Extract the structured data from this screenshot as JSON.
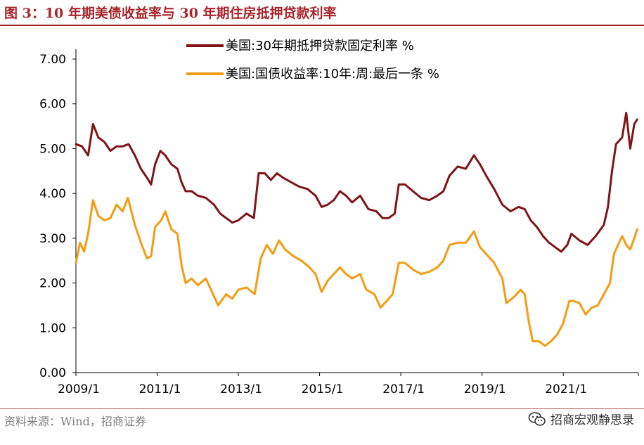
{
  "figure_title": "图 3：10 年期美债收益率与 30 年期住房抵押贷款利率",
  "source": "资料来源：Wind，招商证券",
  "watermark": {
    "text": "招商宏观静思录",
    "icon": "wechat-icon"
  },
  "colors": {
    "accent": "#a6252b",
    "mortgage": "#7f1416",
    "treasury": "#f39c12"
  },
  "chart_data": {
    "type": "line",
    "title": "",
    "xlabel": "",
    "ylabel": "",
    "ylim": [
      0,
      7
    ],
    "yticks": [
      "0.00",
      "1.00",
      "2.00",
      "3.00",
      "4.00",
      "5.00",
      "6.00",
      "7.00"
    ],
    "xlim": [
      2009.0,
      2022.85
    ],
    "xticks": [
      {
        "label": "2009/1",
        "value": 2009.0
      },
      {
        "label": "2011/1",
        "value": 2011.0
      },
      {
        "label": "2013/1",
        "value": 2013.0
      },
      {
        "label": "2015/1",
        "value": 2015.0
      },
      {
        "label": "2017/1",
        "value": 2017.0
      },
      {
        "label": "2019/1",
        "value": 2019.0
      },
      {
        "label": "2021/1",
        "value": 2021.0
      }
    ],
    "grid": false,
    "legend": "top-center",
    "series": [
      {
        "name": "美国:30年期抵押贷款固定利率 %",
        "color": "#7f1416",
        "points": [
          [
            2009.0,
            5.1
          ],
          [
            2009.15,
            5.05
          ],
          [
            2009.3,
            4.85
          ],
          [
            2009.42,
            5.55
          ],
          [
            2009.55,
            5.25
          ],
          [
            2009.7,
            5.15
          ],
          [
            2009.85,
            4.95
          ],
          [
            2010.0,
            5.05
          ],
          [
            2010.15,
            5.05
          ],
          [
            2010.3,
            5.1
          ],
          [
            2010.45,
            4.85
          ],
          [
            2010.6,
            4.55
          ],
          [
            2010.75,
            4.35
          ],
          [
            2010.85,
            4.2
          ],
          [
            2010.95,
            4.65
          ],
          [
            2011.08,
            4.95
          ],
          [
            2011.2,
            4.85
          ],
          [
            2011.35,
            4.65
          ],
          [
            2011.5,
            4.55
          ],
          [
            2011.6,
            4.25
          ],
          [
            2011.7,
            4.05
          ],
          [
            2011.85,
            4.05
          ],
          [
            2012.0,
            3.95
          ],
          [
            2012.2,
            3.9
          ],
          [
            2012.4,
            3.75
          ],
          [
            2012.55,
            3.55
          ],
          [
            2012.7,
            3.45
          ],
          [
            2012.85,
            3.35
          ],
          [
            2013.0,
            3.4
          ],
          [
            2013.2,
            3.55
          ],
          [
            2013.38,
            3.45
          ],
          [
            2013.5,
            4.45
          ],
          [
            2013.65,
            4.45
          ],
          [
            2013.8,
            4.3
          ],
          [
            2013.95,
            4.45
          ],
          [
            2014.1,
            4.35
          ],
          [
            2014.3,
            4.25
          ],
          [
            2014.5,
            4.15
          ],
          [
            2014.7,
            4.1
          ],
          [
            2014.9,
            3.95
          ],
          [
            2015.05,
            3.7
          ],
          [
            2015.2,
            3.75
          ],
          [
            2015.35,
            3.85
          ],
          [
            2015.5,
            4.05
          ],
          [
            2015.65,
            3.95
          ],
          [
            2015.8,
            3.8
          ],
          [
            2016.0,
            3.95
          ],
          [
            2016.2,
            3.65
          ],
          [
            2016.4,
            3.6
          ],
          [
            2016.55,
            3.45
          ],
          [
            2016.7,
            3.45
          ],
          [
            2016.85,
            3.55
          ],
          [
            2016.95,
            4.2
          ],
          [
            2017.1,
            4.2
          ],
          [
            2017.3,
            4.05
          ],
          [
            2017.5,
            3.9
          ],
          [
            2017.7,
            3.85
          ],
          [
            2017.9,
            3.95
          ],
          [
            2018.05,
            4.05
          ],
          [
            2018.2,
            4.4
          ],
          [
            2018.4,
            4.6
          ],
          [
            2018.6,
            4.55
          ],
          [
            2018.8,
            4.85
          ],
          [
            2018.95,
            4.65
          ],
          [
            2019.1,
            4.4
          ],
          [
            2019.3,
            4.1
          ],
          [
            2019.5,
            3.75
          ],
          [
            2019.7,
            3.6
          ],
          [
            2019.9,
            3.7
          ],
          [
            2020.05,
            3.65
          ],
          [
            2020.2,
            3.4
          ],
          [
            2020.35,
            3.25
          ],
          [
            2020.5,
            3.05
          ],
          [
            2020.65,
            2.9
          ],
          [
            2020.8,
            2.8
          ],
          [
            2020.95,
            2.7
          ],
          [
            2021.1,
            2.85
          ],
          [
            2021.2,
            3.1
          ],
          [
            2021.4,
            2.95
          ],
          [
            2021.6,
            2.85
          ],
          [
            2021.8,
            3.05
          ],
          [
            2022.0,
            3.3
          ],
          [
            2022.1,
            3.7
          ],
          [
            2022.2,
            4.5
          ],
          [
            2022.3,
            5.1
          ],
          [
            2022.45,
            5.25
          ],
          [
            2022.55,
            5.8
          ],
          [
            2022.65,
            5.0
          ],
          [
            2022.75,
            5.55
          ],
          [
            2022.82,
            5.65
          ]
        ]
      },
      {
        "name": "美国:国债收益率:10年:周:最后一条 %",
        "color": "#f39c12",
        "points": [
          [
            2009.0,
            2.45
          ],
          [
            2009.1,
            2.9
          ],
          [
            2009.2,
            2.7
          ],
          [
            2009.3,
            3.1
          ],
          [
            2009.42,
            3.85
          ],
          [
            2009.55,
            3.5
          ],
          [
            2009.7,
            3.4
          ],
          [
            2009.85,
            3.45
          ],
          [
            2010.0,
            3.75
          ],
          [
            2010.15,
            3.6
          ],
          [
            2010.28,
            3.9
          ],
          [
            2010.45,
            3.3
          ],
          [
            2010.6,
            2.9
          ],
          [
            2010.75,
            2.55
          ],
          [
            2010.85,
            2.6
          ],
          [
            2010.95,
            3.25
          ],
          [
            2011.1,
            3.4
          ],
          [
            2011.2,
            3.6
          ],
          [
            2011.35,
            3.2
          ],
          [
            2011.5,
            3.1
          ],
          [
            2011.6,
            2.4
          ],
          [
            2011.7,
            2.0
          ],
          [
            2011.85,
            2.1
          ],
          [
            2012.0,
            1.95
          ],
          [
            2012.2,
            2.1
          ],
          [
            2012.35,
            1.8
          ],
          [
            2012.5,
            1.5
          ],
          [
            2012.7,
            1.75
          ],
          [
            2012.85,
            1.65
          ],
          [
            2013.0,
            1.85
          ],
          [
            2013.2,
            1.9
          ],
          [
            2013.4,
            1.75
          ],
          [
            2013.55,
            2.55
          ],
          [
            2013.7,
            2.85
          ],
          [
            2013.85,
            2.65
          ],
          [
            2014.0,
            2.95
          ],
          [
            2014.15,
            2.75
          ],
          [
            2014.35,
            2.6
          ],
          [
            2014.55,
            2.5
          ],
          [
            2014.75,
            2.35
          ],
          [
            2014.9,
            2.2
          ],
          [
            2015.05,
            1.8
          ],
          [
            2015.2,
            2.05
          ],
          [
            2015.35,
            2.2
          ],
          [
            2015.5,
            2.35
          ],
          [
            2015.65,
            2.2
          ],
          [
            2015.8,
            2.1
          ],
          [
            2016.0,
            2.2
          ],
          [
            2016.15,
            1.85
          ],
          [
            2016.35,
            1.75
          ],
          [
            2016.5,
            1.45
          ],
          [
            2016.65,
            1.6
          ],
          [
            2016.8,
            1.75
          ],
          [
            2016.95,
            2.45
          ],
          [
            2017.1,
            2.45
          ],
          [
            2017.3,
            2.3
          ],
          [
            2017.5,
            2.2
          ],
          [
            2017.7,
            2.25
          ],
          [
            2017.9,
            2.35
          ],
          [
            2018.05,
            2.5
          ],
          [
            2018.2,
            2.85
          ],
          [
            2018.4,
            2.9
          ],
          [
            2018.6,
            2.9
          ],
          [
            2018.8,
            3.15
          ],
          [
            2018.95,
            2.8
          ],
          [
            2019.1,
            2.65
          ],
          [
            2019.3,
            2.45
          ],
          [
            2019.5,
            2.1
          ],
          [
            2019.6,
            1.55
          ],
          [
            2019.8,
            1.7
          ],
          [
            2019.95,
            1.85
          ],
          [
            2020.05,
            1.75
          ],
          [
            2020.15,
            1.15
          ],
          [
            2020.25,
            0.7
          ],
          [
            2020.4,
            0.7
          ],
          [
            2020.55,
            0.6
          ],
          [
            2020.7,
            0.7
          ],
          [
            2020.85,
            0.85
          ],
          [
            2021.0,
            1.1
          ],
          [
            2021.15,
            1.6
          ],
          [
            2021.25,
            1.6
          ],
          [
            2021.4,
            1.55
          ],
          [
            2021.55,
            1.3
          ],
          [
            2021.7,
            1.45
          ],
          [
            2021.85,
            1.5
          ],
          [
            2022.0,
            1.75
          ],
          [
            2022.15,
            2.0
          ],
          [
            2022.25,
            2.65
          ],
          [
            2022.35,
            2.85
          ],
          [
            2022.45,
            3.05
          ],
          [
            2022.55,
            2.85
          ],
          [
            2022.65,
            2.75
          ],
          [
            2022.75,
            3.0
          ],
          [
            2022.82,
            3.2
          ]
        ]
      }
    ]
  }
}
